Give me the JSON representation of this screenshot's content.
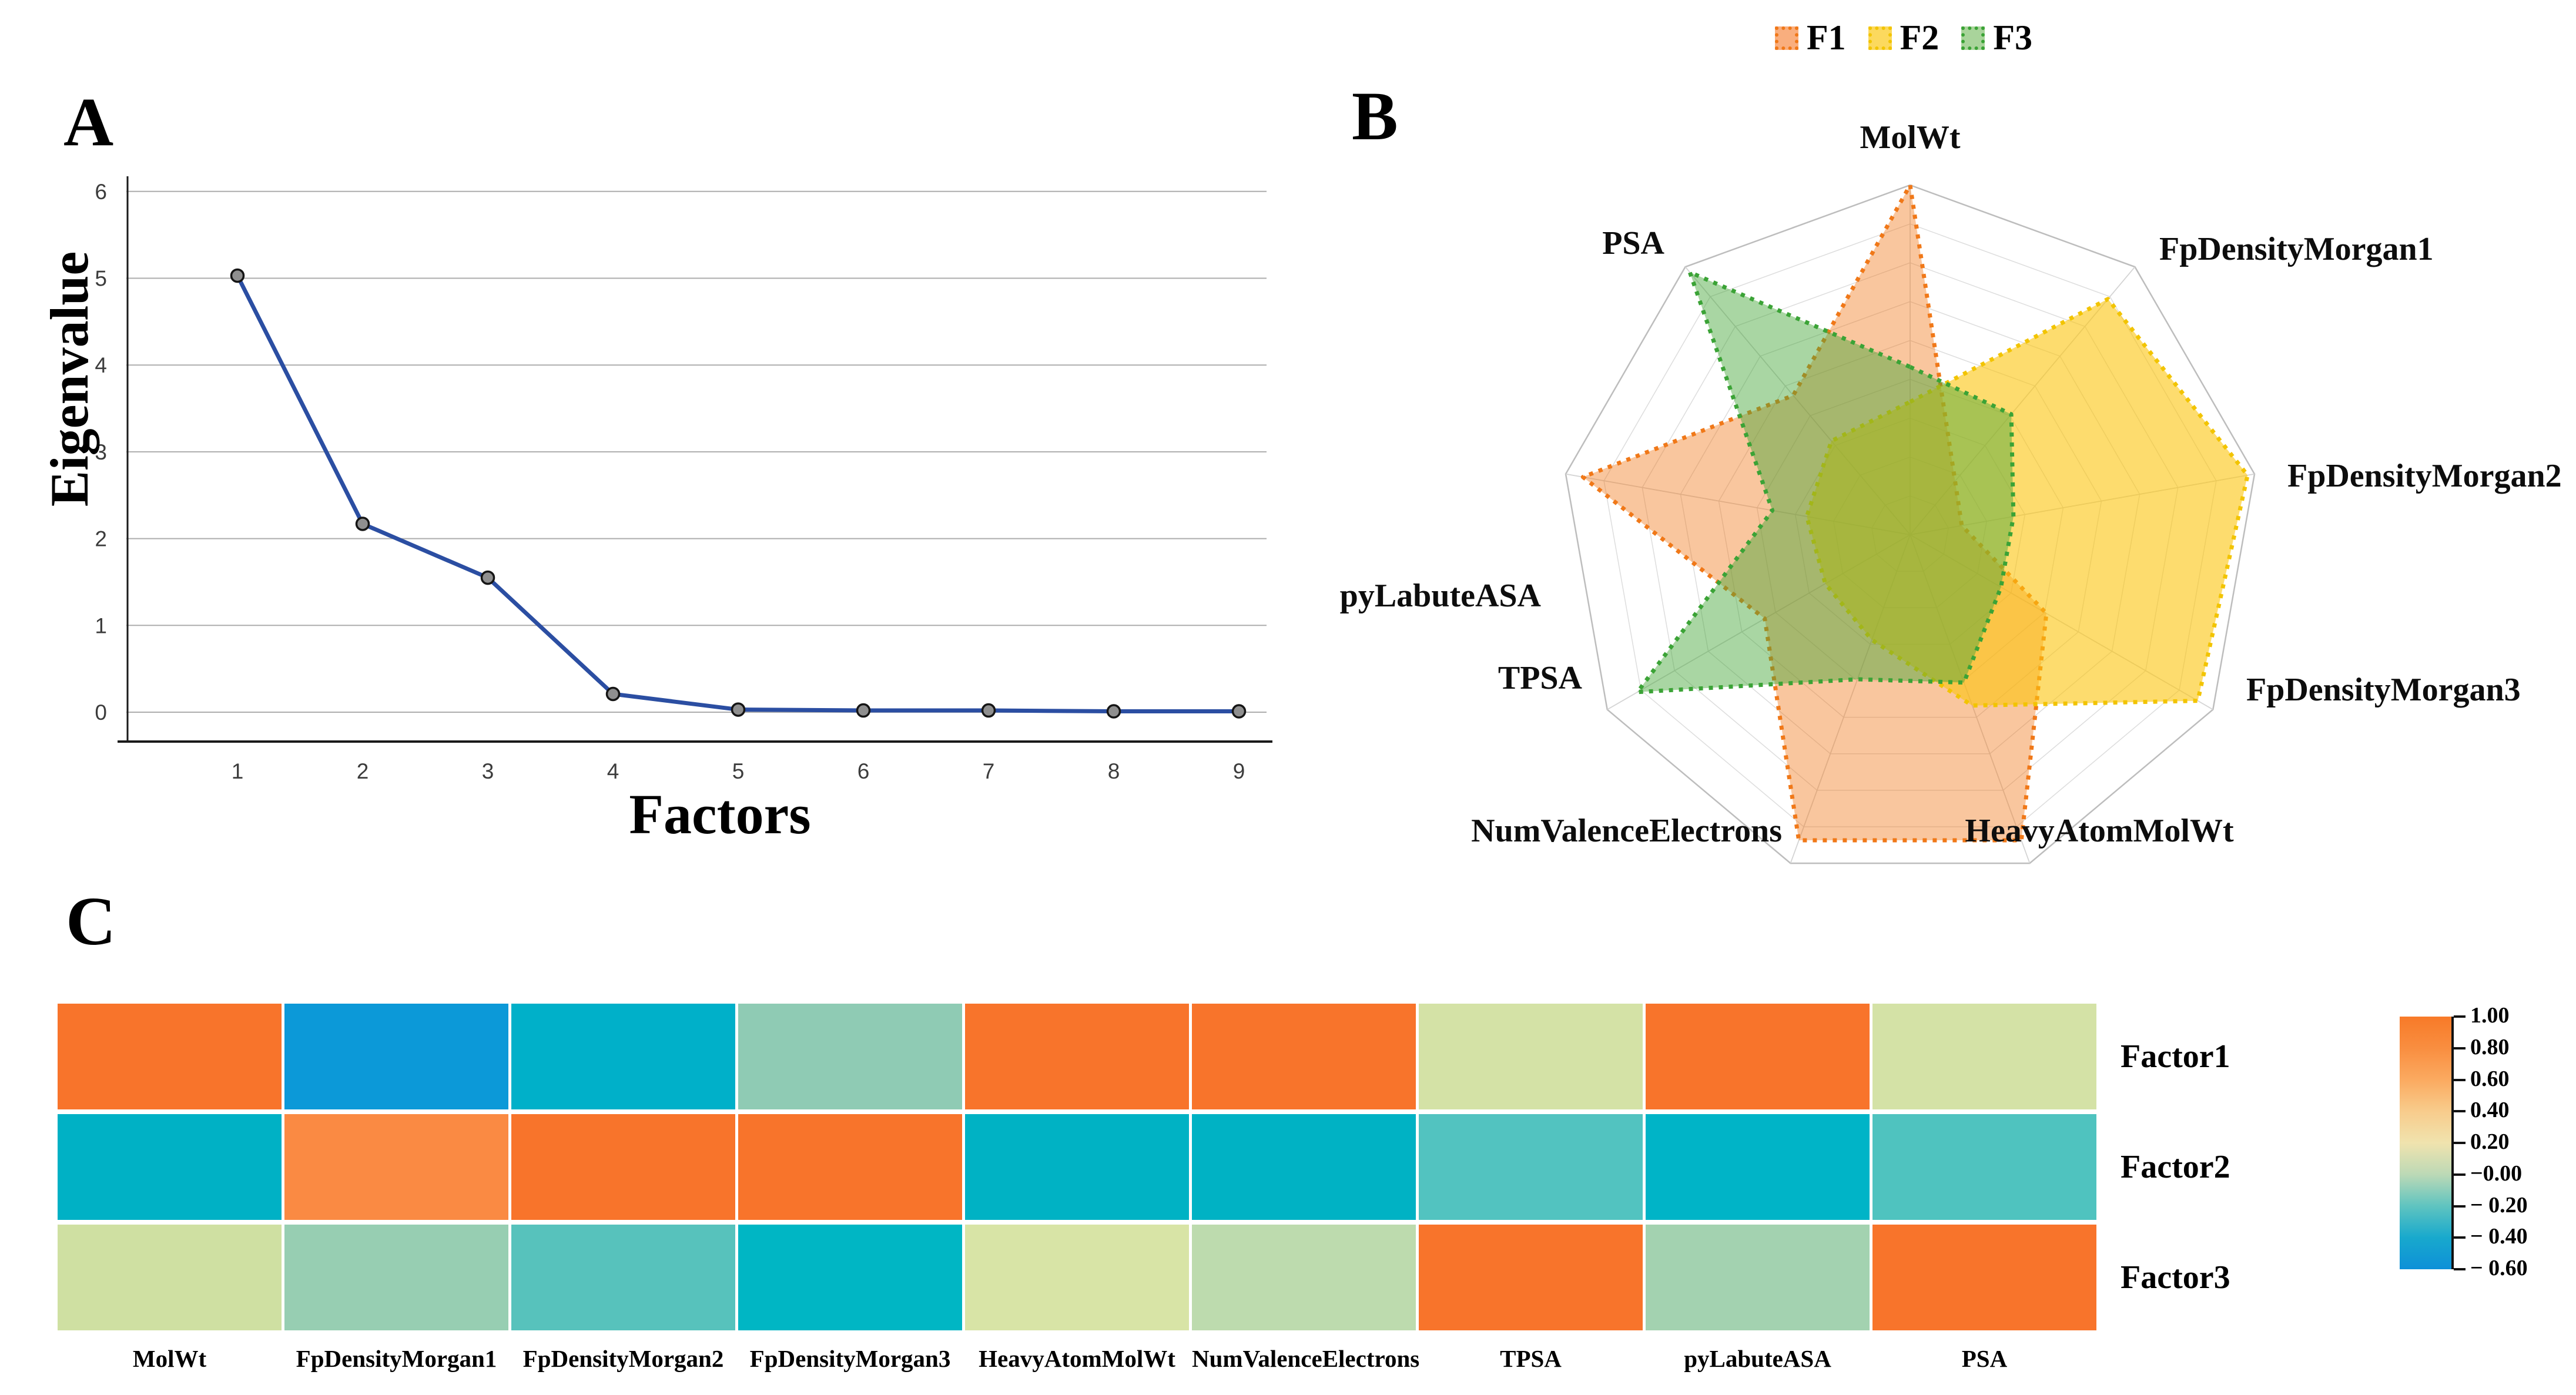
{
  "panels": {
    "a": {
      "letter": "A",
      "y_axis_title": "Eigenvalue",
      "x_axis_title": "Factors"
    },
    "b": {
      "letter": "B"
    },
    "c": {
      "letter": "C"
    }
  },
  "chart_data": [
    {
      "id": "scree-plot",
      "type": "line",
      "title": "",
      "xlabel": "Factors",
      "ylabel": "Eigenvalue",
      "x": [
        1,
        2,
        3,
        4,
        5,
        6,
        7,
        8,
        9
      ],
      "values": [
        5.03,
        2.17,
        1.55,
        0.21,
        0.03,
        0.02,
        0.02,
        0.01,
        0.01
      ],
      "yticks": [
        0,
        1,
        2,
        3,
        4,
        5,
        6
      ],
      "ylim": [
        -0.35,
        6.45
      ],
      "grid": "horizontal",
      "legend_position": "none",
      "line_color": "#2B4EA2",
      "marker_fill": "#8F8F8F",
      "marker_stroke": "#151515",
      "gridline_color": "#ADADAD",
      "axis_color": "#1a1a1a"
    },
    {
      "id": "factor-radar",
      "type": "radar",
      "categories": [
        "MolWt",
        "FpDensityMorgan1",
        "FpDensityMorgan2",
        "FpDensityMorgan3",
        "HeavyAtomMolWt",
        "NumValenceElectrons",
        "TPSA",
        "pyLabuteASA",
        "PSA"
      ],
      "rings": 9,
      "rmax": 1.0,
      "legend_position": "top",
      "grid_color": "#bdbdbd",
      "inner_grid_color": "#dddddd",
      "series": [
        {
          "name": "F1",
          "stroke": "#F07818",
          "fill": "#F07818",
          "fill_opacity": 0.42,
          "swatch_fill": "#F9AE7E",
          "values": [
            1.0,
            0.2,
            0.15,
            0.45,
            0.93,
            0.93,
            0.48,
            0.95,
            0.52
          ]
        },
        {
          "name": "F2",
          "stroke": "#F2C400",
          "fill": "#FBC40D",
          "fill_opacity": 0.6,
          "swatch_fill": "#FCD95E",
          "values": [
            0.38,
            0.88,
            0.98,
            0.95,
            0.52,
            0.32,
            0.28,
            0.3,
            0.35
          ]
        },
        {
          "name": "F3",
          "stroke": "#3BA336",
          "fill": "#44A636",
          "fill_opacity": 0.46,
          "swatch_fill": "#A9D49B",
          "values": [
            0.48,
            0.45,
            0.3,
            0.3,
            0.45,
            0.44,
            0.9,
            0.4,
            0.98
          ]
        }
      ]
    },
    {
      "id": "loadings-heatmap",
      "type": "heatmap",
      "columns": [
        "MolWt",
        "FpDensityMorgan1",
        "FpDensityMorgan2",
        "FpDensityMorgan3",
        "HeavyAtomMolWt",
        "NumValenceElectrons",
        "TPSA",
        "pyLabuteASA",
        "PSA"
      ],
      "rows": [
        "Factor1",
        "Factor2",
        "Factor3"
      ],
      "values": [
        [
          0.95,
          -0.48,
          -0.32,
          -0.08,
          0.95,
          0.95,
          0.22,
          0.95,
          0.22
        ],
        [
          -0.33,
          0.78,
          0.95,
          0.95,
          -0.32,
          -0.32,
          -0.2,
          -0.32,
          -0.2
        ],
        [
          0.2,
          -0.07,
          -0.18,
          -0.28,
          0.22,
          0.1,
          0.95,
          -0.05,
          0.95
        ]
      ],
      "cell_colors": [
        [
          "#F8742B",
          "#0C99D8",
          "#00B0C9",
          "#8FCBB4",
          "#F8742B",
          "#F8742B",
          "#D4E2A6",
          "#F8742B",
          "#D4E2A6"
        ],
        [
          "#00B1C5",
          "#FA8A43",
          "#F8742B",
          "#F8742B",
          "#00B2C4",
          "#00B2C4",
          "#52C3C0",
          "#00B4C7",
          "#4FC3BF"
        ],
        [
          "#CFE0A2",
          "#97CEB2",
          "#57C2BC",
          "#00B6C4",
          "#D8E4A6",
          "#BDDBAE",
          "#F8742B",
          "#A3D2B0",
          "#F8742B"
        ]
      ],
      "colorbar": {
        "ticks": [
          "1.00",
          "0.80",
          "0.60",
          "0.40",
          "0.20",
          "−0.00",
          "− 0.20",
          "− 0.40",
          "− 0.60"
        ],
        "tick_values": [
          1.0,
          0.8,
          0.6,
          0.4,
          0.2,
          0.0,
          -0.2,
          -0.4,
          -0.6
        ],
        "gradient": [
          "#F87A28",
          "#F98E40",
          "#FBAA60",
          "#F8CC8C",
          "#F0E3AE",
          "#BCD9B6",
          "#5FC4C0",
          "#18A9CD",
          "#0E90D8"
        ]
      }
    }
  ]
}
